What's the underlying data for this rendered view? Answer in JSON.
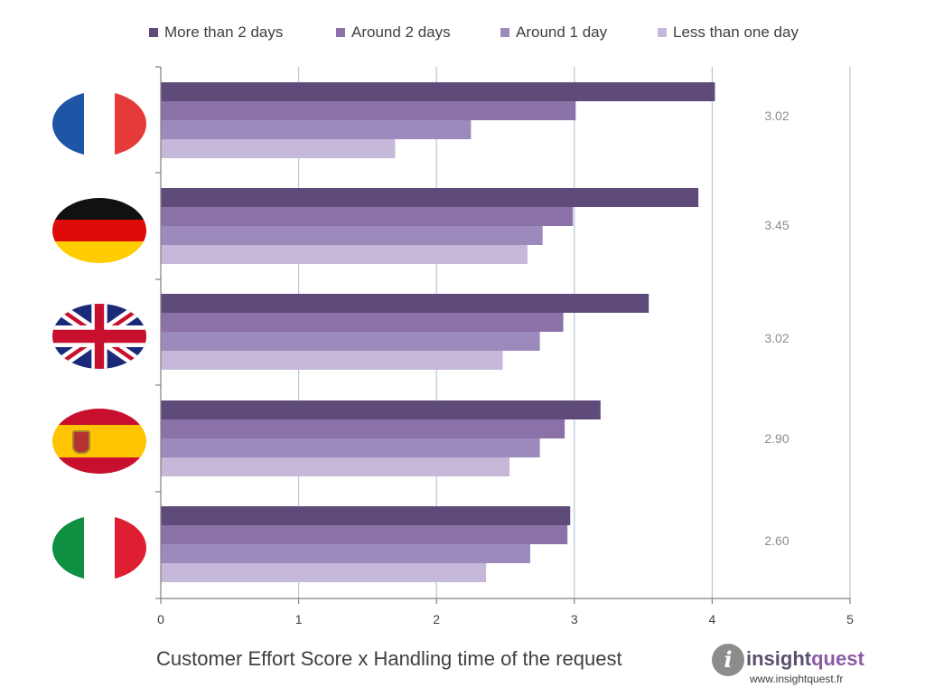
{
  "chart_data": {
    "type": "bar",
    "orientation": "horizontal",
    "title": "Customer Effort Score x Handling time of the request",
    "categories": [
      "France",
      "Germany",
      "United Kingdom",
      "Spain",
      "Italy"
    ],
    "series": [
      {
        "name": "More than 2 days",
        "color": "#5f4b7a",
        "values": [
          4.02,
          3.9,
          3.54,
          3.19,
          2.97
        ]
      },
      {
        "name": "Around 2 days",
        "color": "#8a72a8",
        "values": [
          3.01,
          2.99,
          2.92,
          2.93,
          2.95
        ]
      },
      {
        "name": "Around 1 day",
        "color": "#9c8abd",
        "values": [
          2.25,
          2.77,
          2.75,
          2.75,
          2.68
        ]
      },
      {
        "name": "Less than one day",
        "color": "#c5b8d9",
        "values": [
          1.7,
          2.66,
          2.48,
          2.53,
          2.36
        ]
      }
    ],
    "side_labels": [
      "3.02",
      "3.45",
      "3.02",
      "2.90",
      "2.60"
    ],
    "xlim": [
      0,
      5
    ],
    "xticks": [
      "0",
      "1",
      "2",
      "3",
      "4",
      "5"
    ],
    "grid": true,
    "legend_position": "top"
  },
  "logo": {
    "word1": "insight",
    "word2": "quest",
    "url": "www.insightquest.fr",
    "icon": "i"
  }
}
